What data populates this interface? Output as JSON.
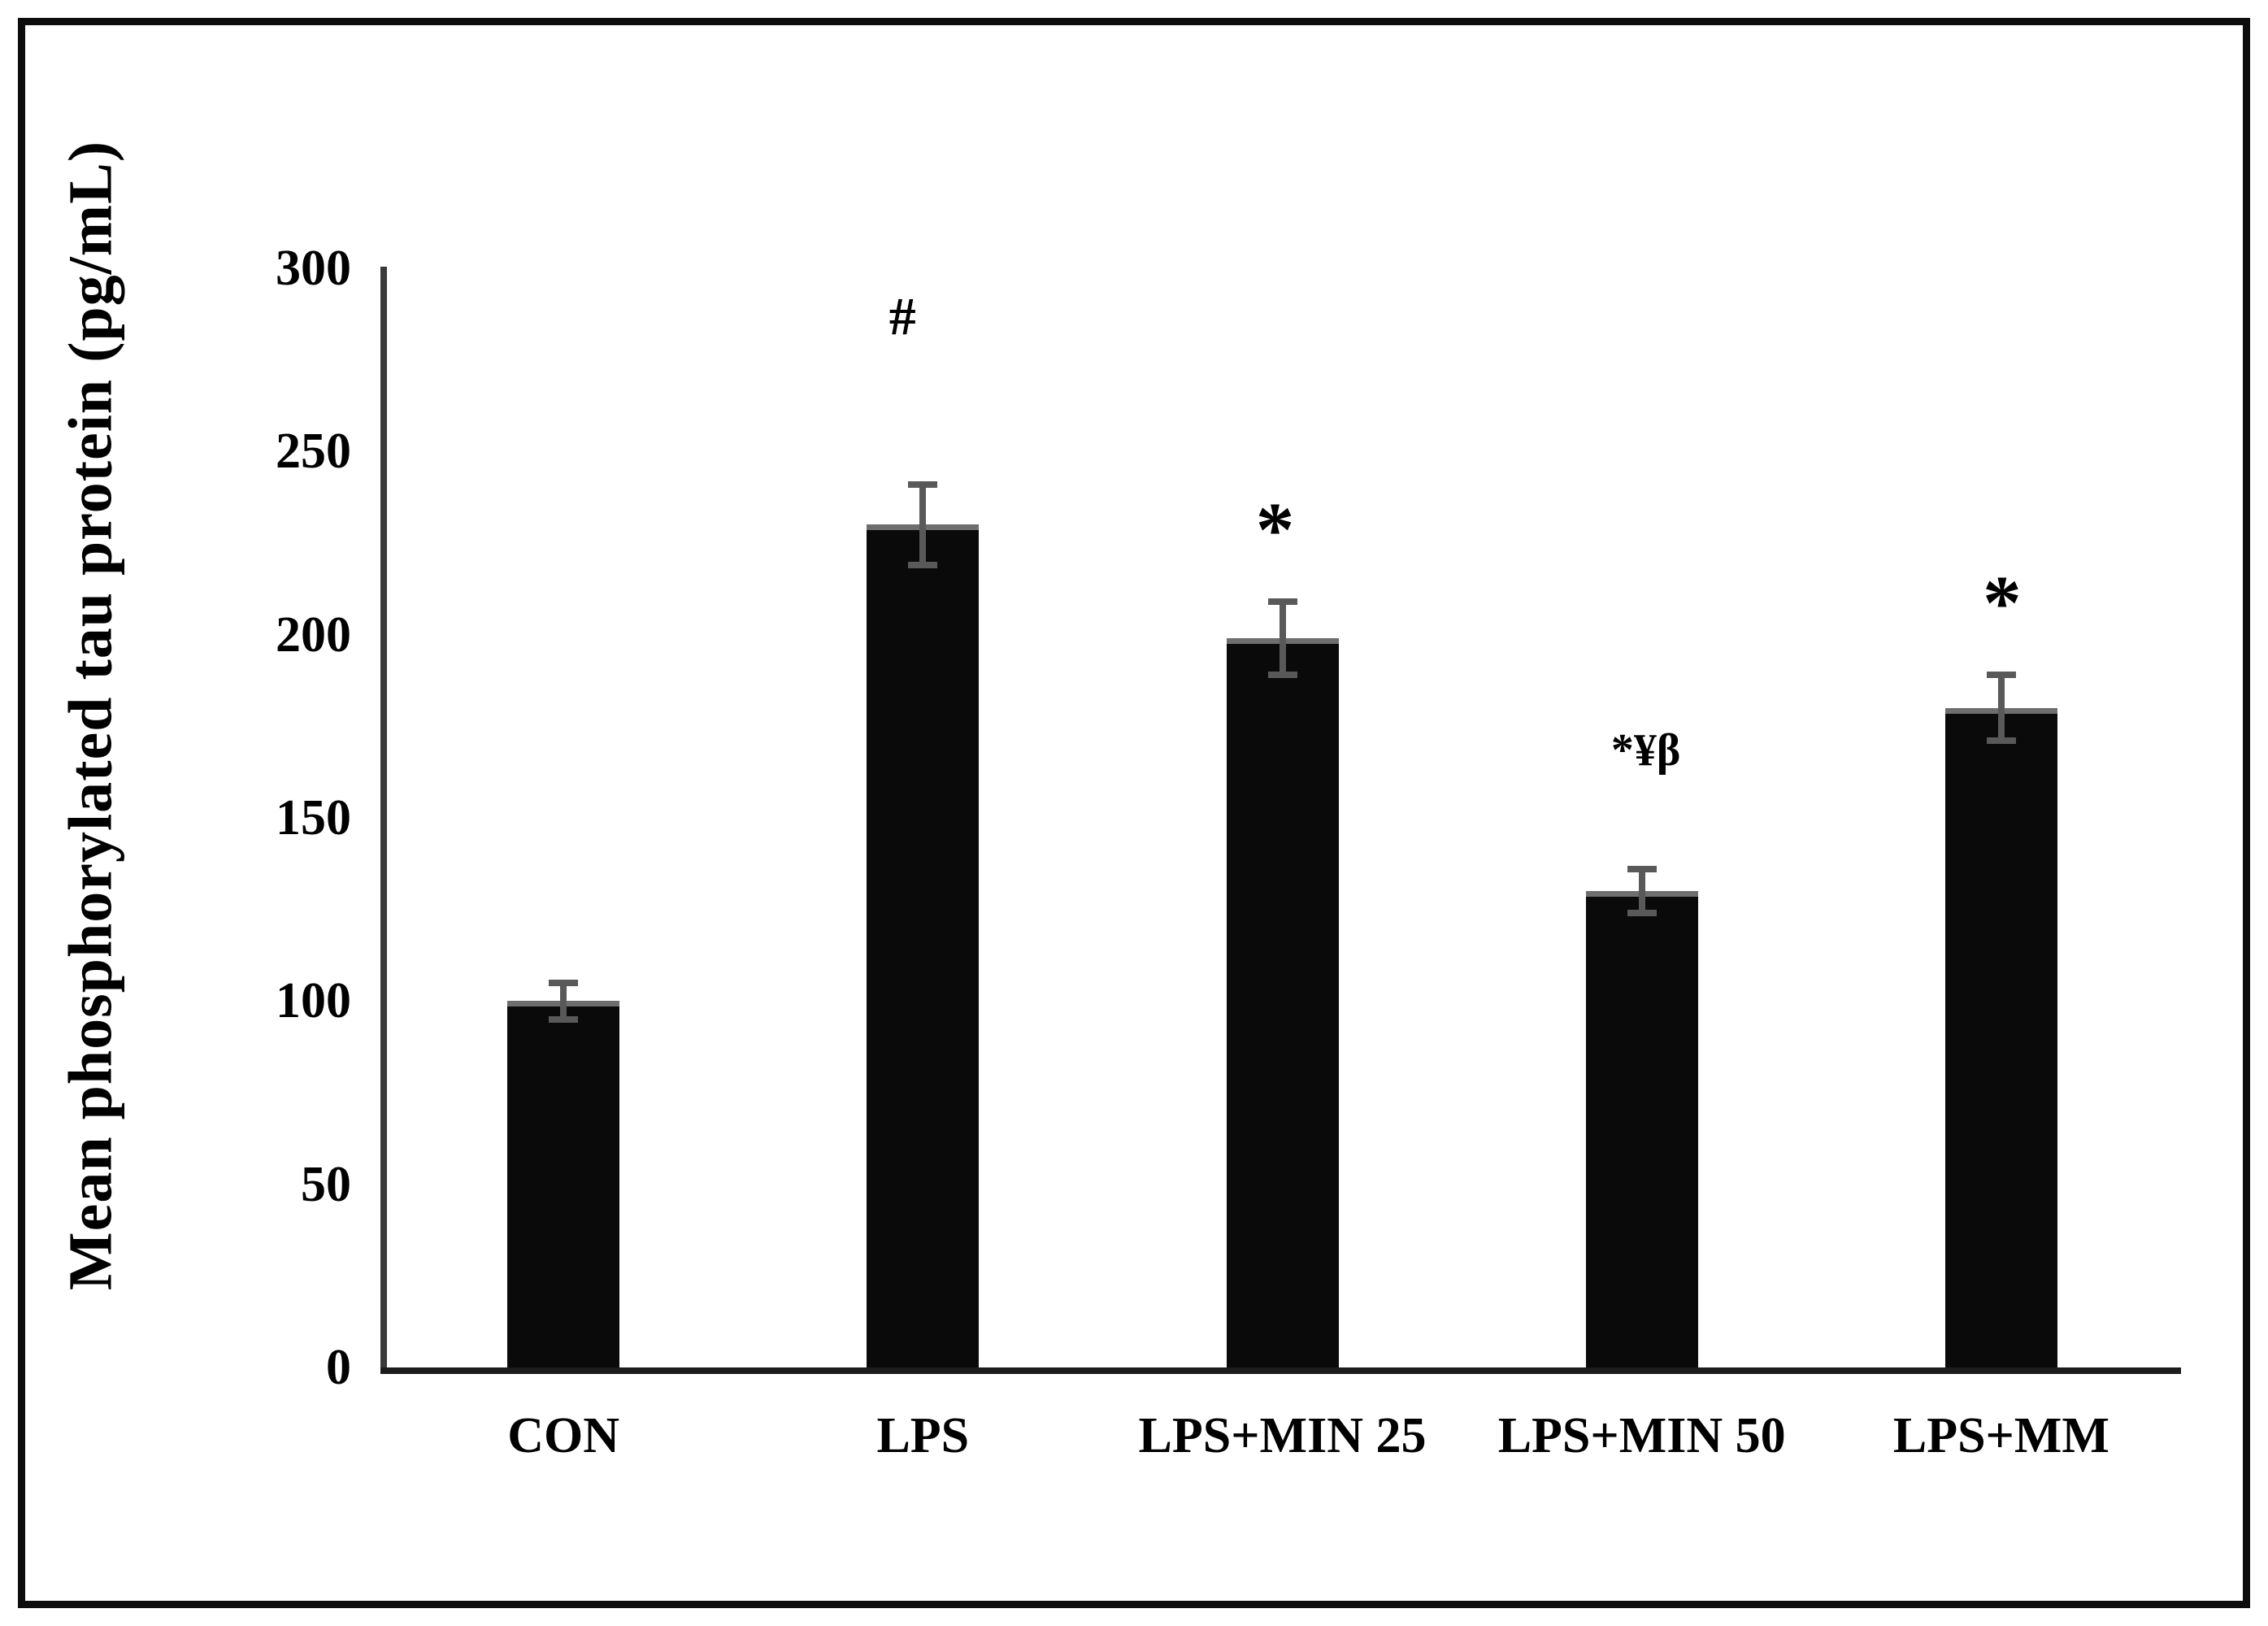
{
  "chart_data": {
    "type": "bar",
    "title": "",
    "ylabel": "Mean phosphorylated tau protein (pg/mL)",
    "xlabel": "",
    "ylim": [
      0,
      300
    ],
    "ytick_interval": 50,
    "yticks": [
      0,
      50,
      100,
      150,
      200,
      250,
      300
    ],
    "grid": false,
    "legend_position": "none",
    "categories": [
      "CON",
      "LPS",
      "LPS+MIN 25",
      "LPS+MIN 50",
      "LPS+MM"
    ],
    "values": [
      100,
      230,
      199,
      130,
      180
    ],
    "error_bars": [
      5,
      11,
      10,
      6,
      9
    ],
    "annotations": [
      "",
      "#",
      "*",
      "*¥β",
      "*"
    ],
    "bar_color": "#0a0a0a",
    "error_bar_color": "#595959",
    "axis_color": "#3a3a3a"
  }
}
